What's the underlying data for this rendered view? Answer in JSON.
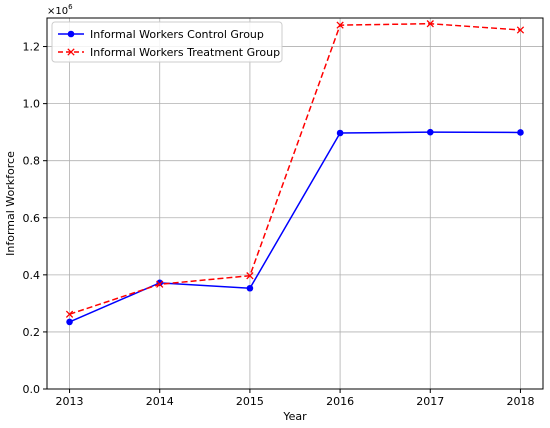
{
  "chart_data": {
    "type": "line",
    "title": "",
    "xlabel": "Year",
    "ylabel": "Informal Workforce",
    "y_multiplier": {
      "base": "×10",
      "exponent": "6"
    },
    "x": [
      2013,
      2014,
      2015,
      2016,
      2017,
      2018
    ],
    "x_tick_labels": [
      "2013",
      "2014",
      "2015",
      "2016",
      "2017",
      "2018"
    ],
    "y_ticks": [
      0.0,
      0.2,
      0.4,
      0.6,
      0.8,
      1.0,
      1.2
    ],
    "y_tick_labels": [
      "0.0",
      "0.2",
      "0.4",
      "0.6",
      "0.8",
      "1.0",
      "1.2"
    ],
    "ylim": [
      0.0,
      1.3
    ],
    "xlim": [
      2012.75,
      2018.25
    ],
    "grid": true,
    "legend_position": "top-left",
    "series": [
      {
        "name": "Informal Workers Control Group",
        "color": "#0000ff",
        "line_style": "solid",
        "marker": "circle",
        "values": [
          0.235,
          0.372,
          0.353,
          0.897,
          0.9,
          0.899
        ]
      },
      {
        "name": "Informal Workers Treatment Group",
        "color": "#ff0000",
        "line_style": "dashed",
        "marker": "x",
        "values": [
          0.262,
          0.367,
          0.397,
          1.275,
          1.28,
          1.258
        ]
      }
    ]
  }
}
